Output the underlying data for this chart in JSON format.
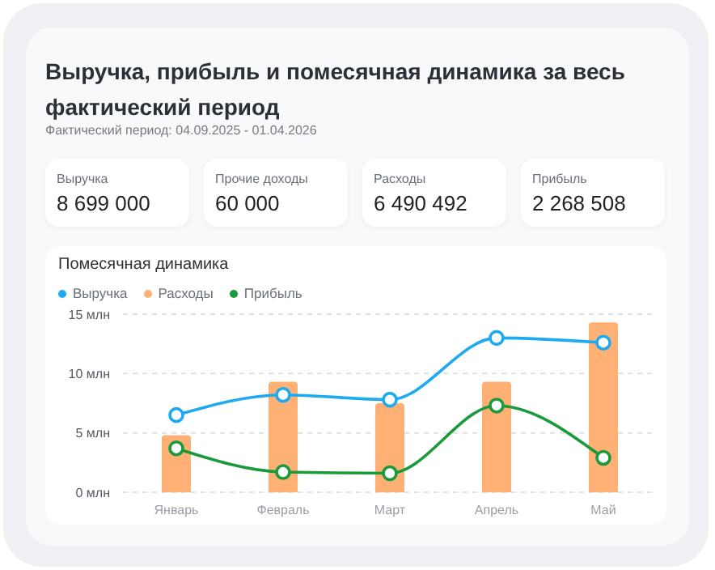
{
  "chart_data": [
    {
      "type": "other",
      "title": "Выручка, прибыль и помесячная динамика за весь фактический период",
      "subtitle": "Фактический период: 04.09.2025 - 01.04.2026",
      "categories": [
        "Выручка",
        "Прочие доходы",
        "Расходы",
        "Прибыль"
      ],
      "values": [
        8699000,
        60000,
        6490492,
        2268508
      ],
      "data_labels": true
    },
    {
      "type": "line",
      "title": "Помесячная динамика",
      "categories": [
        "Январь",
        "Февраль",
        "Март",
        "Апрель",
        "Май"
      ],
      "series": [
        {
          "name": "Выручка",
          "type": "line",
          "color": "#1eaaf0",
          "values": [
            6.5,
            8.2,
            7.8,
            13.0,
            12.6
          ]
        },
        {
          "name": "Расходы",
          "type": "bar",
          "color": "#ffb074",
          "values": [
            4.8,
            9.3,
            7.5,
            9.3,
            14.3
          ]
        },
        {
          "name": "Прибыль",
          "type": "line",
          "color": "#1a9a3a",
          "values": [
            3.7,
            1.7,
            1.6,
            7.3,
            2.9
          ]
        }
      ],
      "ylim": [
        0,
        15
      ],
      "yticks": [
        {
          "value": 0,
          "label": "0 млн"
        },
        {
          "value": 5,
          "label": "5 млн"
        },
        {
          "value": 10,
          "label": "10 млн"
        },
        {
          "value": 15,
          "label": "15 млн"
        }
      ],
      "grid": "y",
      "legend": "top left",
      "marker": "circle"
    }
  ]
}
